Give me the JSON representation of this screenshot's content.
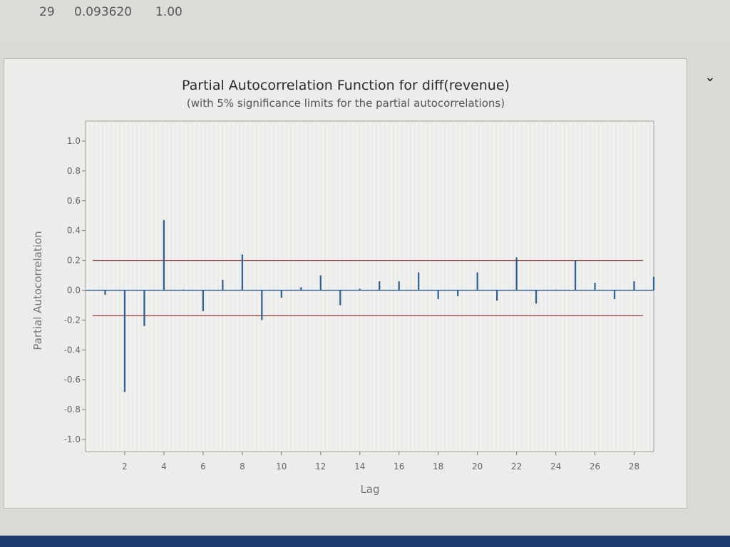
{
  "table_row": {
    "lag": "29",
    "pacf": "0.093620",
    "t": "1.00"
  },
  "scroll_icon": "chevron-down-icon",
  "chart_data": {
    "type": "bar",
    "title": "Partial Autocorrelation Function for diff(revenue)",
    "subtitle": "(with 5% significance limits for the partial autocorrelations)",
    "xlabel": "Lag",
    "ylabel": "Partial Autocorrelation",
    "ylim": [
      -1.0,
      1.0
    ],
    "xlim": [
      0,
      29
    ],
    "y_ticks": [
      "1.0",
      "0.8",
      "0.6",
      "0.4",
      "0.2",
      "0.0",
      "-0.2",
      "-0.4",
      "-0.6",
      "-0.8",
      "-1.0"
    ],
    "y_tick_values": [
      1.0,
      0.8,
      0.6,
      0.4,
      0.2,
      0.0,
      -0.2,
      -0.4,
      -0.6,
      -0.8,
      -1.0
    ],
    "x_ticks": [
      "2",
      "4",
      "6",
      "8",
      "10",
      "12",
      "14",
      "16",
      "18",
      "20",
      "22",
      "24",
      "26",
      "28"
    ],
    "x_tick_values": [
      2,
      4,
      6,
      8,
      10,
      12,
      14,
      16,
      18,
      20,
      22,
      24,
      26,
      28
    ],
    "lags": [
      1,
      2,
      3,
      4,
      5,
      6,
      7,
      8,
      9,
      10,
      11,
      12,
      13,
      14,
      15,
      16,
      17,
      18,
      19,
      20,
      21,
      22,
      23,
      24,
      25,
      26,
      27,
      28,
      29
    ],
    "values": [
      -0.03,
      -0.68,
      -0.24,
      0.47,
      0.0,
      -0.14,
      0.07,
      0.24,
      -0.2,
      -0.05,
      0.02,
      0.1,
      -0.1,
      0.01,
      0.06,
      0.06,
      0.12,
      -0.06,
      -0.04,
      0.12,
      -0.07,
      0.22,
      -0.09,
      0.0,
      0.2,
      0.05,
      -0.06,
      0.06,
      0.09
    ],
    "significance_limits": [
      0.2,
      -0.17
    ],
    "colors": {
      "bar": "#2d5f93",
      "limit": "#8c3535",
      "zero_line": "#2d5f93",
      "plot_bg": "#f0f0ee",
      "grid": "#dcdcd8"
    }
  }
}
